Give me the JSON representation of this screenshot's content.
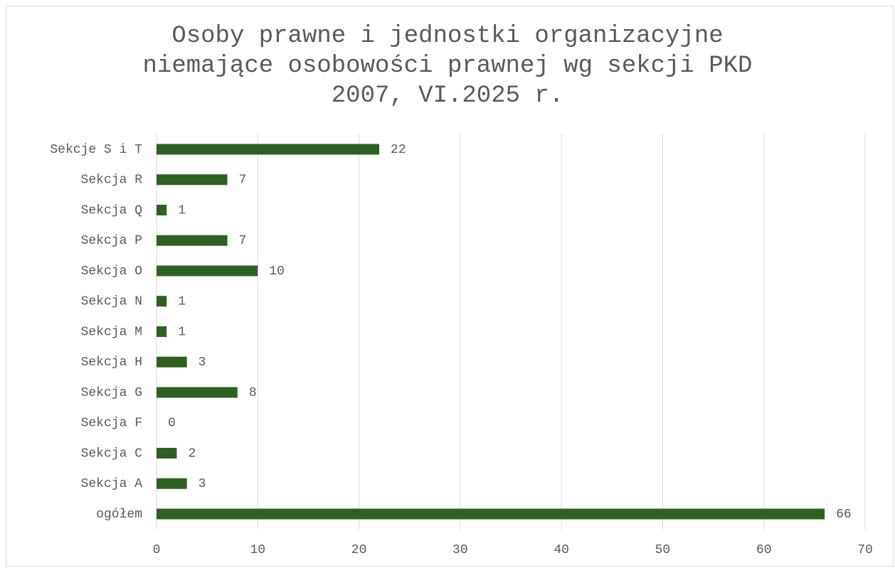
{
  "chart_data": {
    "type": "bar",
    "orientation": "horizontal",
    "title": "Osoby prawne i jednostki organizacyjne\nniemające osobowości prawnej wg sekcji PKD\n2007, VI.2025 r.",
    "categories": [
      "Sekcje S i T",
      "Sekcja R",
      "Sekcja Q",
      "Sekcja P",
      "Sekcja O",
      "Sekcja N",
      "Sekcja M",
      "Sekcja H",
      "Sekcja G",
      "Sekcja F",
      "Sekcja C",
      "Sekcja A",
      "ogółem"
    ],
    "values": [
      22,
      7,
      1,
      7,
      10,
      1,
      1,
      3,
      8,
      0,
      2,
      3,
      66
    ],
    "color": "#2e6121",
    "xlim": [
      0,
      70
    ],
    "xticks": [
      0,
      10,
      20,
      30,
      40,
      50,
      60,
      70
    ],
    "grid": true
  }
}
